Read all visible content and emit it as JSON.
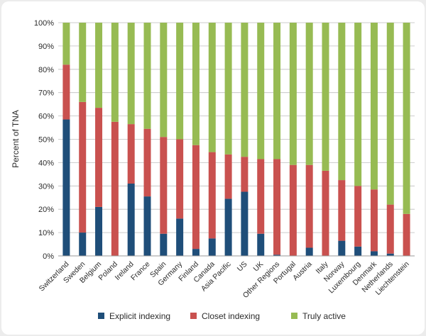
{
  "chart_data": {
    "type": "bar",
    "stacked": true,
    "ylabel": "Percent of TNA",
    "ylim": [
      0,
      100
    ],
    "yticks": [
      "0%",
      "10%",
      "20%",
      "30%",
      "40%",
      "50%",
      "60%",
      "70%",
      "80%",
      "90%",
      "100%"
    ],
    "grid": true,
    "legend_position": "bottom",
    "categories": [
      "Switzerland",
      "Sweden",
      "Belgium",
      "Poland",
      "Ireland",
      "France",
      "Spain",
      "Germany",
      "Finland",
      "Canada",
      "Asia Pacific",
      "US",
      "UK",
      "Other Regions",
      "Portugal",
      "Austria",
      "Italy",
      "Norway",
      "Luxembourg",
      "Denmark",
      "Netherlands",
      "Liechtenstein"
    ],
    "series": [
      {
        "name": "Explicit indexing",
        "color": "#1f4e79",
        "values": [
          58.5,
          10,
          21,
          0,
          31,
          25.5,
          9.5,
          16,
          3,
          7.5,
          24.5,
          27.5,
          9.5,
          0.5,
          0,
          3.5,
          0,
          6.5,
          4,
          2,
          1,
          0
        ]
      },
      {
        "name": "Closet indexing",
        "color": "#c9514f",
        "values": [
          23.5,
          56,
          42.5,
          57.5,
          25.5,
          29,
          41.5,
          34,
          44.5,
          37,
          19,
          15,
          32,
          41,
          39,
          35.5,
          36.5,
          26,
          26,
          26.5,
          21,
          18
        ]
      },
      {
        "name": "Truly active",
        "color": "#97bb53",
        "values": [
          18,
          34,
          36.5,
          42.5,
          43.5,
          45.5,
          49,
          50,
          52.5,
          55.5,
          56.5,
          57.5,
          58.5,
          58.5,
          61,
          61,
          63.5,
          67.5,
          70,
          71.5,
          78,
          82
        ]
      }
    ]
  }
}
